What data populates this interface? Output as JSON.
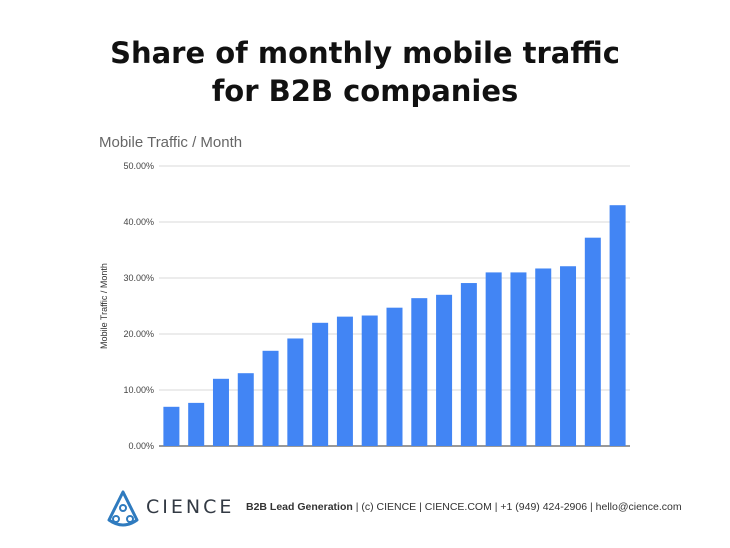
{
  "headline": {
    "line1": "Share of monthly mobile traffic",
    "line2": "for B2B companies"
  },
  "chart_data": {
    "type": "bar",
    "title": "Mobile Traffic / Month",
    "xlabel": "",
    "ylabel": "Mobile Traffic / Month",
    "ylim": [
      0,
      50
    ],
    "yticks": [
      "0.00%",
      "10.00%",
      "20.00%",
      "30.00%",
      "40.00%",
      "50.00%"
    ],
    "categories": [
      "",
      "",
      "",
      "",
      "",
      "",
      "",
      "",
      "",
      "",
      "",
      "",
      "",
      "",
      "",
      "",
      "",
      "",
      ""
    ],
    "values": [
      7.0,
      7.7,
      12.0,
      13.0,
      17.0,
      19.2,
      22.0,
      23.1,
      23.3,
      24.7,
      26.4,
      27.0,
      29.1,
      31.0,
      31.0,
      31.7,
      32.1,
      37.2,
      43.0
    ],
    "bar_color": "#4285f4",
    "grid": true
  },
  "footer": {
    "brand": "CIENCE",
    "tagline_bold": "B2B Lead Generation",
    "tagline_rest": " | (c) CIENCE | CIENCE.COM | +1 (949) 424-2906 | hello@cience.com",
    "brand_color": "#2f7bbf"
  }
}
